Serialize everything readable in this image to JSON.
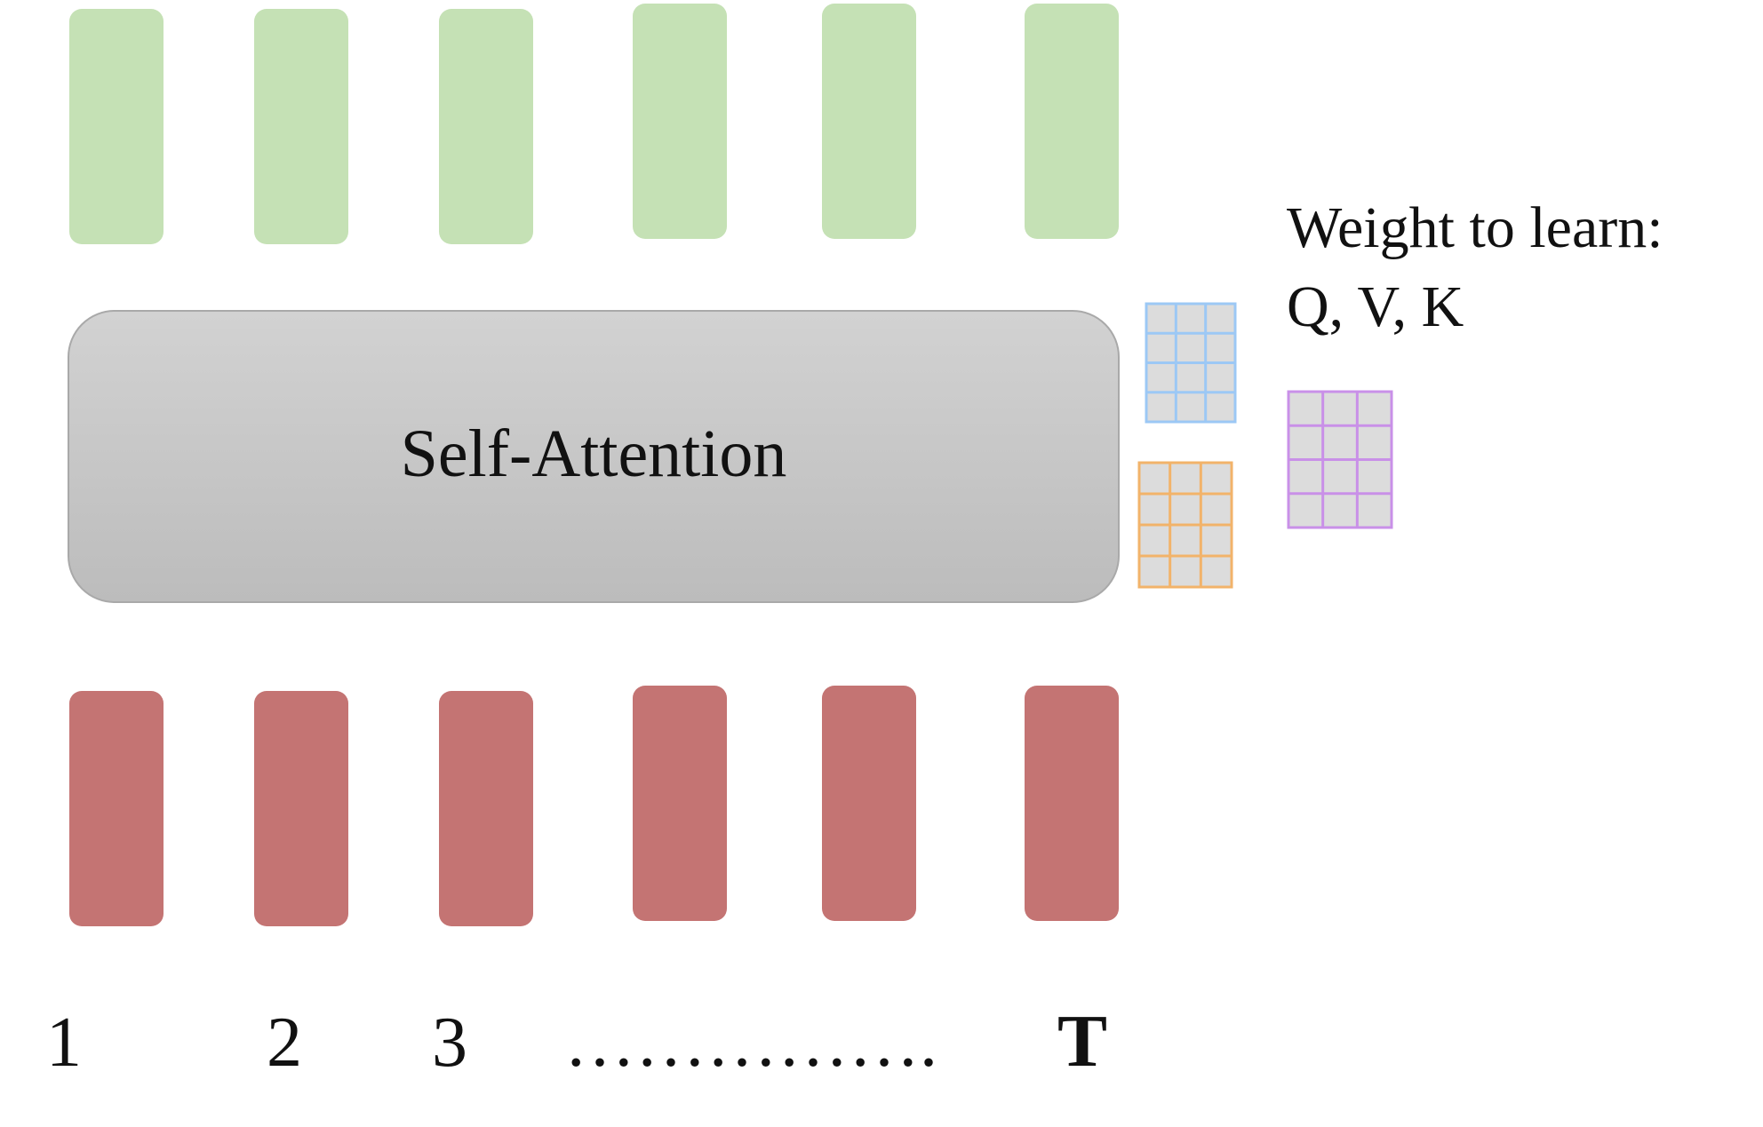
{
  "block": {
    "label": "Self-Attention"
  },
  "weights": {
    "title_line1": "Weight to learn:",
    "title_line2": "Q, V, K",
    "matrices": [
      {
        "name": "blue-matrix",
        "color": "#9cc8f5",
        "rows": 4,
        "cols": 3
      },
      {
        "name": "orange-matrix",
        "color": "#f2b36a",
        "rows": 4,
        "cols": 3
      },
      {
        "name": "purple-matrix",
        "color": "#c990e8",
        "rows": 4,
        "cols": 3
      }
    ]
  },
  "tokens": {
    "output_color": "#c5e1b5",
    "input_color": "#c47473",
    "count": 6
  },
  "positions": {
    "p1": "1",
    "p2": "2",
    "p3": "3",
    "ellipsis": "…………….",
    "pT": "T"
  },
  "colors": {
    "block_fill_top": "#d2d2d2",
    "block_fill_bottom": "#bcbcbc",
    "block_stroke": "#a9a9a9",
    "cell_fill": "#dcdcdc"
  }
}
